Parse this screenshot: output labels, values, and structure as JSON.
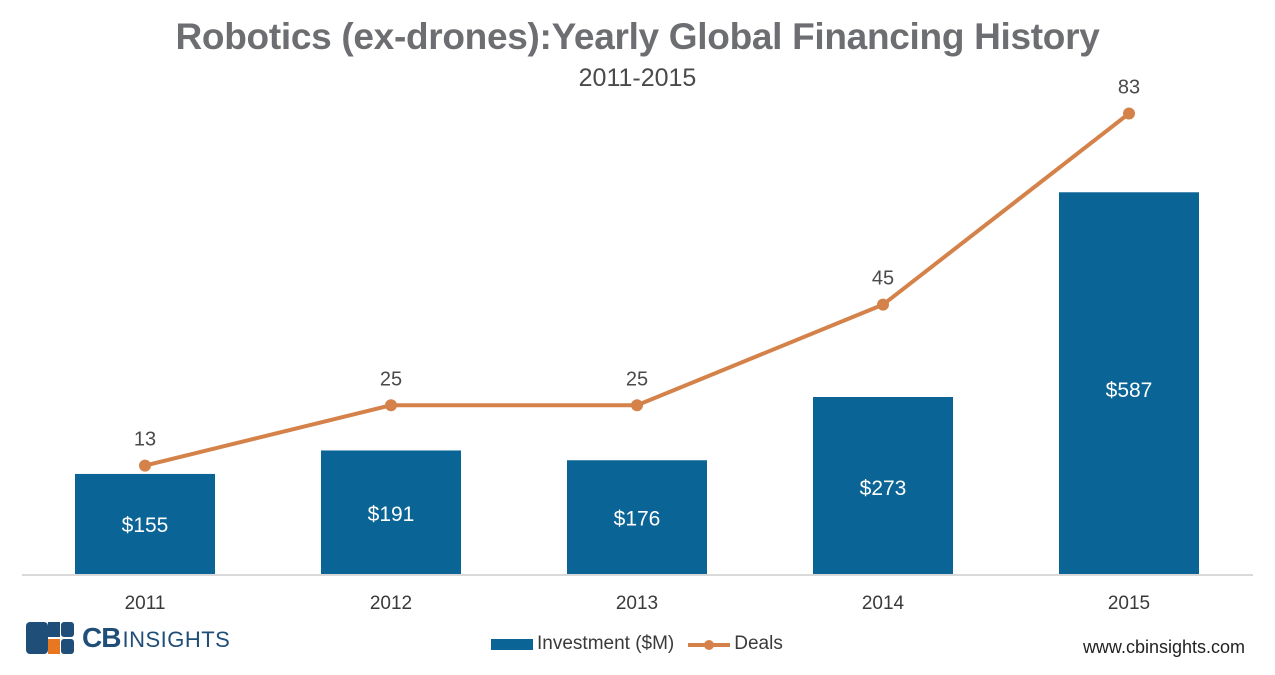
{
  "chart_data": {
    "type": "bar",
    "title": "Robotics (ex-drones):Yearly Global Financing History",
    "subtitle": "2011-2015",
    "categories": [
      "2011",
      "2012",
      "2013",
      "2014",
      "2015"
    ],
    "series": [
      {
        "name": "Investment ($M)",
        "type": "bar",
        "color": "#0a6496",
        "values": [
          155,
          191,
          176,
          273,
          587
        ],
        "labels": [
          "$155",
          "$191",
          "$176",
          "$273",
          "$587"
        ]
      },
      {
        "name": "Deals",
        "type": "line",
        "color": "#d4824a",
        "values": [
          13,
          25,
          25,
          45,
          83
        ],
        "labels": [
          "13",
          "25",
          "25",
          "45",
          "83"
        ]
      }
    ],
    "xlabel": "",
    "ylabel": "",
    "grid": false,
    "legend": "bottom-center"
  },
  "footer": {
    "logo_cb": "CB",
    "logo_insights": "INSIGHTS",
    "website": "www.cbinsights.com"
  }
}
